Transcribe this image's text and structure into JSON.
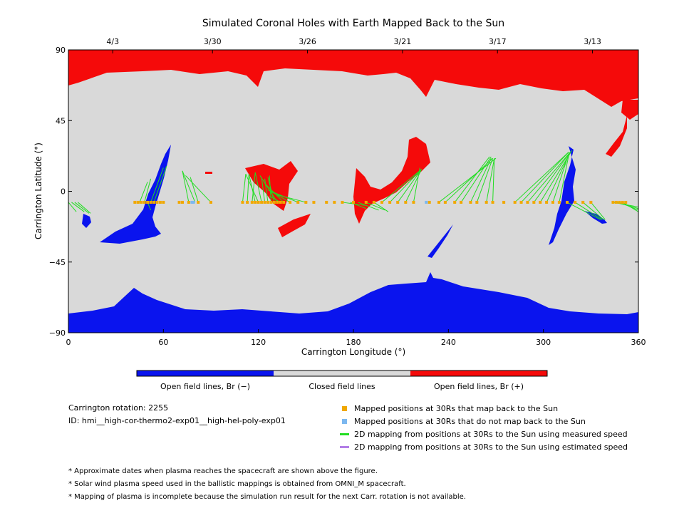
{
  "chart_data": {
    "type": "map",
    "title": "Simulated Coronal Holes with Earth Mapped Back to the Sun",
    "xlabel": "Carrington Longitude (°)",
    "ylabel": "Carrington Latitude (°)",
    "xlim": [
      0,
      360
    ],
    "ylim": [
      -90,
      90
    ],
    "x_ticks": [
      0,
      60,
      120,
      180,
      240,
      300,
      360
    ],
    "y_ticks": [
      90,
      45,
      0,
      -45,
      -90
    ],
    "y_tick_labels": [
      "90",
      "45",
      "0",
      "−45",
      "−90"
    ],
    "top_axis": [
      {
        "label": "4/3",
        "lon": 28
      },
      {
        "label": "3/30",
        "lon": 91
      },
      {
        "label": "3/26",
        "lon": 151
      },
      {
        "label": "3/21",
        "lon": 211
      },
      {
        "label": "3/17",
        "lon": 271
      },
      {
        "label": "3/13",
        "lon": 331
      }
    ],
    "colors": {
      "negative": "#0a14ee",
      "closed": "#d9d9d9",
      "positive": "#f50a0a",
      "mapped": "#f0a800",
      "unmapped": "#7cb8f0",
      "measured": "#22dd22",
      "estimated": "#b27ee6"
    },
    "colorbar": [
      {
        "label": "Open field lines, Br (−)"
      },
      {
        "label": "Closed field lines"
      },
      {
        "label": "Open field lines, Br (+)"
      }
    ],
    "mapped_track_lat": -7,
    "mapped_lons": [
      42,
      44,
      46,
      48,
      50,
      52,
      54,
      56,
      58,
      60,
      70,
      72,
      76,
      82,
      90,
      110,
      113,
      116,
      118,
      120,
      122,
      124,
      126,
      128,
      130,
      132,
      134,
      136,
      140,
      145,
      150,
      155,
      163,
      168,
      173,
      180,
      188,
      193,
      198,
      203,
      208,
      213,
      218,
      228,
      234,
      238,
      244,
      248,
      254,
      258,
      264,
      268,
      275,
      282,
      286,
      290,
      294,
      298,
      302,
      306,
      310,
      315,
      320,
      325,
      330,
      344,
      346,
      348,
      350,
      352
    ],
    "unmapped_lons": [
      78,
      79,
      226
    ],
    "measured_links": [
      [
        0,
        -7,
        5,
        -13
      ],
      [
        2,
        -7,
        10,
        -13
      ],
      [
        4,
        -7,
        13,
        -14
      ],
      [
        6,
        -7,
        14,
        -14
      ],
      [
        45,
        -7,
        50,
        6
      ],
      [
        48,
        -7,
        52,
        8
      ],
      [
        50,
        -7,
        52,
        -12
      ],
      [
        52,
        -7,
        60,
        15
      ],
      [
        54,
        -7,
        62,
        16
      ],
      [
        76,
        -7,
        72,
        13
      ],
      [
        80,
        -7,
        72,
        13
      ],
      [
        82,
        -7,
        77,
        9
      ],
      [
        90,
        -7,
        74,
        10
      ],
      [
        110,
        -7,
        112,
        11
      ],
      [
        113,
        -7,
        114,
        11
      ],
      [
        116,
        -7,
        118,
        12
      ],
      [
        118,
        -7,
        114,
        11
      ],
      [
        120,
        -7,
        112,
        11
      ],
      [
        122,
        -7,
        118,
        12
      ],
      [
        124,
        -7,
        122,
        9
      ],
      [
        126,
        -7,
        124,
        8
      ],
      [
        128,
        -7,
        127,
        10
      ],
      [
        130,
        -7,
        126,
        9
      ],
      [
        132,
        -7,
        121,
        10
      ],
      [
        134,
        -7,
        127,
        -3
      ],
      [
        136,
        -7,
        124,
        5
      ],
      [
        140,
        -7,
        126,
        1
      ],
      [
        145,
        -7,
        128,
        0
      ],
      [
        150,
        -7,
        131,
        -2
      ],
      [
        173,
        -7,
        188,
        -9
      ],
      [
        178,
        -7,
        188,
        -11
      ],
      [
        183,
        -7,
        196,
        -12
      ],
      [
        188,
        -7,
        200,
        -12
      ],
      [
        193,
        -7,
        202,
        -13
      ],
      [
        198,
        -7,
        223,
        14
      ],
      [
        203,
        -7,
        223,
        14
      ],
      [
        208,
        -7,
        223,
        14
      ],
      [
        213,
        -7,
        223,
        14
      ],
      [
        218,
        -7,
        222,
        15
      ],
      [
        234,
        -7,
        270,
        21
      ],
      [
        238,
        -7,
        268,
        21
      ],
      [
        244,
        -7,
        266,
        22
      ],
      [
        248,
        -7,
        267,
        22
      ],
      [
        254,
        -7,
        267,
        21
      ],
      [
        258,
        -7,
        268,
        21
      ],
      [
        264,
        -7,
        269,
        21
      ],
      [
        268,
        -7,
        269,
        21
      ],
      [
        282,
        -7,
        316,
        25
      ],
      [
        286,
        -7,
        316,
        25
      ],
      [
        290,
        -7,
        317,
        25
      ],
      [
        294,
        -7,
        317,
        25
      ],
      [
        298,
        -7,
        318,
        26
      ],
      [
        302,
        -7,
        317,
        25
      ],
      [
        306,
        -7,
        316,
        24
      ],
      [
        310,
        -7,
        316,
        23
      ],
      [
        315,
        -7,
        336,
        -18
      ],
      [
        320,
        -7,
        337,
        -18
      ],
      [
        325,
        -7,
        338,
        -18
      ],
      [
        330,
        -7,
        339,
        -18
      ],
      [
        344,
        -7,
        360,
        -10
      ],
      [
        346,
        -7,
        360,
        -11
      ],
      [
        348,
        -7,
        360,
        -12
      ],
      [
        350,
        -7,
        360,
        -13
      ]
    ],
    "estimated_links": []
  },
  "legend": {
    "mapped": "Mapped positions at 30Rs that map back to the Sun",
    "unmapped": "Mapped positions at 30Rs that do not map back to the Sun",
    "measured": "2D mapping from positions at 30Rs to the Sun using measured speed",
    "estimated": "2D mapping from positions at 30Rs to the Sun using estimated speed"
  },
  "info": {
    "rotation": "Carrington rotation: 2255",
    "id": "ID: hmi__high-cor-thermo2-exp01__high-hel-poly-exp01"
  },
  "notes": [
    "* Approximate dates when plasma reaches the spacecraft are shown above the figure.",
    "* Solar wind plasma speed used in the ballistic mappings is obtained from OMNI_M spacecraft.",
    "* Mapping of plasma is incomplete because the simulation run result for the next Carr. rotation is not available."
  ]
}
